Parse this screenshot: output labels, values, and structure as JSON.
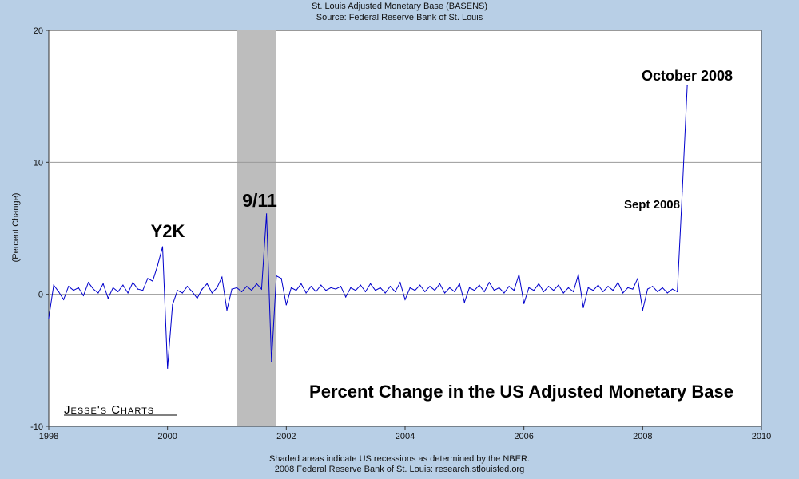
{
  "header": {
    "title": "St. Louis Adjusted Monetary Base (BASENS)",
    "subtitle": "Source: Federal Reserve Bank of St. Louis"
  },
  "footer": {
    "note": "Shaded areas indicate US recessions as determined by the NBER.",
    "copyright": "2008 Federal Reserve Bank of St. Louis: research.stlouisfed.org"
  },
  "chart_data": {
    "type": "line",
    "title": "St. Louis Adjusted Monetary Base (BASENS)",
    "subtitle": "Source: Federal Reserve Bank of St. Louis",
    "ylabel": "(Percent Change)",
    "xlabel": "",
    "xlim": [
      1998,
      2010
    ],
    "ylim": [
      -10,
      20
    ],
    "xticks": [
      "1998",
      "2000",
      "2002",
      "2004",
      "2006",
      "2008",
      "2010"
    ],
    "yticks": [
      "-10",
      "0",
      "10",
      "20"
    ],
    "grid": "horizontal",
    "colors": {
      "line": "#0000cc",
      "recession": "#bdbdbd",
      "plot_bg": "#ffffff",
      "background": "#b8cfe6"
    },
    "recession": [
      2001.17,
      2001.83
    ],
    "series": [
      {
        "x": [
          "1998-01",
          "1998-02",
          "1998-03",
          "1998-04",
          "1998-05",
          "1998-06",
          "1998-07",
          "1998-08",
          "1998-09",
          "1998-10",
          "1998-11",
          "1998-12",
          "1999-01",
          "1999-02",
          "1999-03",
          "1999-04",
          "1999-05",
          "1999-06",
          "1999-07",
          "1999-08",
          "1999-09",
          "1999-10",
          "1999-11",
          "1999-12",
          "2000-01",
          "2000-02",
          "2000-03",
          "2000-04",
          "2000-05",
          "2000-06",
          "2000-07",
          "2000-08",
          "2000-09",
          "2000-10",
          "2000-11",
          "2000-12",
          "2001-01",
          "2001-02",
          "2001-03",
          "2001-04",
          "2001-05",
          "2001-06",
          "2001-07",
          "2001-08",
          "2001-09",
          "2001-10",
          "2001-11",
          "2001-12",
          "2002-01",
          "2002-02",
          "2002-03",
          "2002-04",
          "2002-05",
          "2002-06",
          "2002-07",
          "2002-08",
          "2002-09",
          "2002-10",
          "2002-11",
          "2002-12",
          "2003-01",
          "2003-02",
          "2003-03",
          "2003-04",
          "2003-05",
          "2003-06",
          "2003-07",
          "2003-08",
          "2003-09",
          "2003-10",
          "2003-11",
          "2003-12",
          "2004-01",
          "2004-02",
          "2004-03",
          "2004-04",
          "2004-05",
          "2004-06",
          "2004-07",
          "2004-08",
          "2004-09",
          "2004-10",
          "2004-11",
          "2004-12",
          "2005-01",
          "2005-02",
          "2005-03",
          "2005-04",
          "2005-05",
          "2005-06",
          "2005-07",
          "2005-08",
          "2005-09",
          "2005-10",
          "2005-11",
          "2005-12",
          "2006-01",
          "2006-02",
          "2006-03",
          "2006-04",
          "2006-05",
          "2006-06",
          "2006-07",
          "2006-08",
          "2006-09",
          "2006-10",
          "2006-11",
          "2006-12",
          "2007-01",
          "2007-02",
          "2007-03",
          "2007-04",
          "2007-05",
          "2007-06",
          "2007-07",
          "2007-08",
          "2007-09",
          "2007-10",
          "2007-11",
          "2007-12",
          "2008-01",
          "2008-02",
          "2008-03",
          "2008-04",
          "2008-05",
          "2008-06",
          "2008-07",
          "2008-08",
          "2008-09",
          "2008-10"
        ],
        "values": [
          -1.8,
          0.7,
          0.2,
          -0.4,
          0.6,
          0.3,
          0.5,
          -0.1,
          0.9,
          0.4,
          0.1,
          0.8,
          -0.3,
          0.5,
          0.2,
          0.7,
          0.1,
          0.9,
          0.4,
          0.3,
          1.2,
          1.0,
          2.2,
          3.6,
          -5.6,
          -0.8,
          0.3,
          0.1,
          0.6,
          0.2,
          -0.3,
          0.4,
          0.8,
          0.1,
          0.5,
          1.3,
          -1.2,
          0.4,
          0.5,
          0.2,
          0.6,
          0.3,
          0.8,
          0.4,
          6.1,
          -5.1,
          1.4,
          1.2,
          -0.8,
          0.5,
          0.3,
          0.8,
          0.1,
          0.6,
          0.2,
          0.7,
          0.3,
          0.5,
          0.4,
          0.6,
          -0.2,
          0.5,
          0.3,
          0.7,
          0.2,
          0.8,
          0.3,
          0.5,
          0.1,
          0.6,
          0.2,
          0.9,
          -0.4,
          0.5,
          0.3,
          0.7,
          0.2,
          0.6,
          0.3,
          0.8,
          0.1,
          0.5,
          0.2,
          0.8,
          -0.6,
          0.5,
          0.3,
          0.7,
          0.2,
          0.9,
          0.3,
          0.5,
          0.1,
          0.6,
          0.3,
          1.5,
          -0.7,
          0.5,
          0.3,
          0.8,
          0.2,
          0.6,
          0.3,
          0.7,
          0.1,
          0.5,
          0.2,
          1.5,
          -1.0,
          0.5,
          0.3,
          0.7,
          0.2,
          0.6,
          0.3,
          0.9,
          0.1,
          0.5,
          0.4,
          1.2,
          -1.2,
          0.4,
          0.6,
          0.2,
          0.5,
          0.1,
          0.4,
          0.2,
          7.8,
          15.8
        ]
      }
    ],
    "annotations": [
      "Y2K",
      "9/11",
      "October 2008",
      "Sept 2008",
      "Percent Change in the US Adjusted Monetary Base",
      "Jesse's Charts"
    ]
  }
}
